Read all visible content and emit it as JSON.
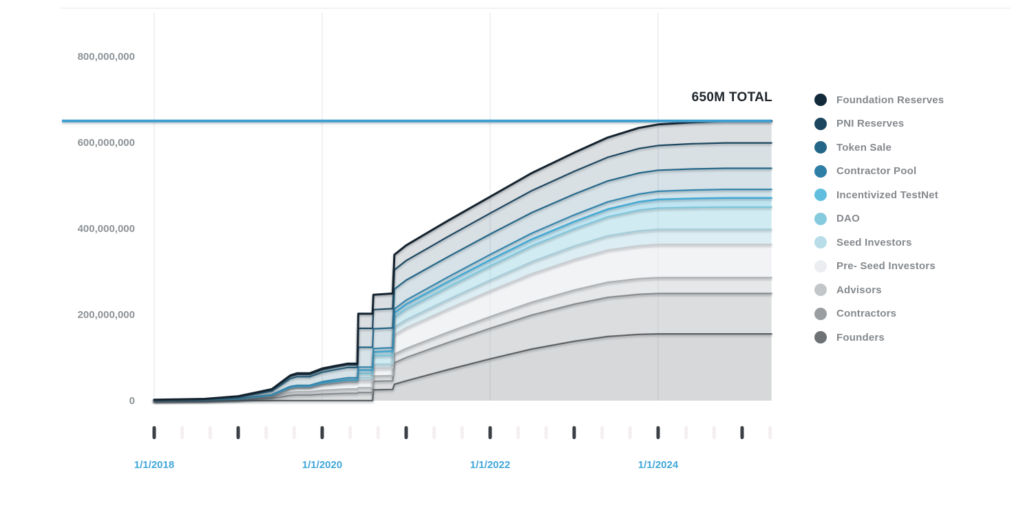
{
  "chart": {
    "total_label": "650M TOTAL",
    "total_value_millions": 650,
    "colors": {
      "background": "#ffffff",
      "total_line": "#3f9fd0",
      "total_label_text": "#20262c",
      "y_axis_label": "#8d9296",
      "date_label": "#41a7da",
      "major_tick": "#3b4046",
      "minor_tick": "#f5eef2",
      "gridline": "#eef1f3"
    },
    "y_axis": {
      "tick_labels": [
        "800,000,000",
        "600,000,000",
        "400,000,000",
        "200,000,000",
        "0"
      ],
      "tick_values_millions": [
        800,
        600,
        400,
        200,
        0
      ]
    },
    "x_axis": {
      "label_dates": [
        {
          "year": 2018,
          "text": "1/1/2018"
        },
        {
          "year": 2020,
          "text": "1/1/2020"
        },
        {
          "year": 2022,
          "text": "1/1/2022"
        },
        {
          "year": 2024,
          "text": "1/1/2024"
        }
      ],
      "major_tick_years": [
        2018,
        2019,
        2020,
        2021,
        2022,
        2023,
        2024,
        2025
      ],
      "minor_tick_interval_months": 4
    }
  },
  "chart_data": {
    "type": "area",
    "stacked": true,
    "title": "",
    "xlabel": "",
    "ylabel": "",
    "legend_position": "right",
    "grid": "faint-vertical-at-even-years",
    "ylim_millions": [
      0,
      800
    ],
    "xlim_years": [
      2018.0,
      2025.35
    ],
    "annotation": {
      "label": "650M TOTAL",
      "value_millions": 650
    },
    "x_years": [
      2018.0,
      2018.6,
      2019.0,
      2019.4,
      2019.62,
      2019.7,
      2019.85,
      2020.0,
      2020.15,
      2020.3,
      2020.42,
      2020.43,
      2020.6,
      2020.61,
      2020.84,
      2020.86,
      2021.0,
      2021.5,
      2022.0,
      2022.5,
      2023.0,
      2023.4,
      2023.77,
      2024.0,
      2024.4,
      2024.8,
      2025.35
    ],
    "series": [
      {
        "label": "Foundation Reserves",
        "color": "#132a3a",
        "edge_color": "#14222e",
        "fill_opacity": 0.15,
        "edge_width": 3,
        "values_millions": [
          0.5,
          0.8,
          1,
          1.5,
          2.5,
          3,
          3,
          3,
          3,
          3,
          3,
          34,
          34,
          34.5,
          35,
          35,
          35.5,
          37,
          38.5,
          41,
          43.5,
          46,
          48,
          49,
          50,
          51,
          51
        ]
      },
      {
        "label": "PNI Reserves",
        "color": "#1c4660",
        "edge_color": "#1c4660",
        "fill_opacity": 0.17,
        "edge_width": 2.2,
        "values_millions": [
          0.5,
          0.7,
          2,
          3,
          5,
          5,
          5,
          5.5,
          6,
          6,
          6,
          44,
          44,
          44.5,
          45,
          45,
          45.5,
          47,
          48.5,
          51,
          53,
          55,
          57,
          57.5,
          58.5,
          59,
          59
        ]
      },
      {
        "label": "Token Sale",
        "color": "#236687",
        "edge_color": "#236687",
        "fill_opacity": 0.19,
        "edge_width": 2.2,
        "values_millions": [
          0.3,
          1,
          3,
          8,
          18,
          20,
          20,
          22,
          23,
          24,
          24,
          46,
          46,
          46,
          46,
          46,
          46.5,
          47,
          47.5,
          48,
          48.3,
          48.6,
          49,
          49,
          49,
          49,
          49
        ]
      },
      {
        "label": "Contractor Pool",
        "color": "#2e7ea6",
        "edge_color": "#3585ad",
        "fill_opacity": 0.22,
        "edge_width": 2.2,
        "values_millions": [
          0,
          0,
          0.3,
          1,
          2,
          2,
          2,
          3,
          4,
          5,
          5,
          7,
          7,
          8,
          8,
          9,
          9.5,
          11,
          12.5,
          14,
          15.5,
          17,
          18,
          19,
          19.7,
          20,
          20
        ]
      },
      {
        "label": "Incentivized TestNet",
        "color": "#62bede",
        "edge_color": "#41a9d5",
        "fill_opacity": 0.4,
        "edge_width": 2.5,
        "values_millions": [
          0,
          0,
          0,
          0,
          0,
          0,
          0,
          0,
          0,
          0,
          0,
          8,
          8,
          9,
          9.5,
          10,
          11,
          12.5,
          14,
          15.5,
          17,
          18,
          19.5,
          20,
          20.7,
          21,
          21
        ]
      },
      {
        "label": "DAO",
        "color": "#85cadd",
        "edge_color": "#7fc5da",
        "fill_opacity": 0.38,
        "edge_width": 2.2,
        "values_millions": [
          0,
          0,
          0,
          0,
          0,
          0,
          0,
          0,
          0,
          0,
          0,
          10,
          10,
          20,
          20.5,
          23,
          25,
          29,
          33,
          37,
          40,
          44,
          48,
          49.5,
          51,
          52,
          52
        ]
      },
      {
        "label": "Seed Investors",
        "color": "#b9dde8",
        "edge_color": "#a3ccd9",
        "fill_opacity": 0.5,
        "edge_width": 2,
        "values_millions": [
          0,
          0,
          0,
          1,
          2,
          2,
          2,
          4,
          5,
          6,
          6,
          7,
          7,
          9,
          9,
          18,
          19,
          22,
          25,
          28,
          31,
          33,
          34.5,
          35,
          35,
          35,
          35
        ]
      },
      {
        "label": "Pre- Seed Investors",
        "color": "#ebedf0",
        "edge_color": "#c8cbd0",
        "fill_opacity": 0.65,
        "edge_width": 2,
        "values_millions": [
          0,
          0,
          1,
          4,
          10,
          11,
          11,
          13,
          14,
          15,
          15,
          16,
          16,
          18,
          18,
          45,
          48,
          54,
          60,
          66,
          71,
          75,
          76.5,
          77,
          77,
          77,
          77
        ]
      },
      {
        "label": "Advisors",
        "color": "#c3c6c8",
        "edge_color": "#aeb1b4",
        "fill_opacity": 0.42,
        "edge_width": 2.2,
        "values_millions": [
          0.2,
          0.5,
          1,
          3,
          7,
          7.5,
          7.5,
          9,
          9.5,
          10,
          10,
          11,
          11,
          12,
          12,
          20,
          21,
          24,
          27,
          30,
          33,
          35,
          36.5,
          37,
          37,
          37,
          37
        ]
      },
      {
        "label": "Contractors",
        "color": "#9b9ea1",
        "edge_color": "#898d90",
        "fill_opacity": 0.35,
        "edge_width": 2.2,
        "values_millions": [
          0.5,
          1,
          2,
          5,
          12,
          13,
          13,
          15,
          16,
          17,
          17,
          19,
          19,
          20,
          20,
          50,
          54,
          63,
          71,
          79,
          86,
          91,
          93,
          94,
          94,
          94,
          94
        ]
      },
      {
        "label": "Founders",
        "color": "#6e7275",
        "edge_color": "#5d6164",
        "fill_opacity": 0.28,
        "edge_width": 2.2,
        "values_millions": [
          0,
          0,
          0,
          0,
          0,
          0,
          0,
          0,
          0,
          0,
          0,
          0,
          0,
          25,
          26,
          38,
          46,
          72,
          97,
          120,
          138,
          149,
          154,
          155,
          155,
          155,
          155
        ]
      }
    ]
  }
}
